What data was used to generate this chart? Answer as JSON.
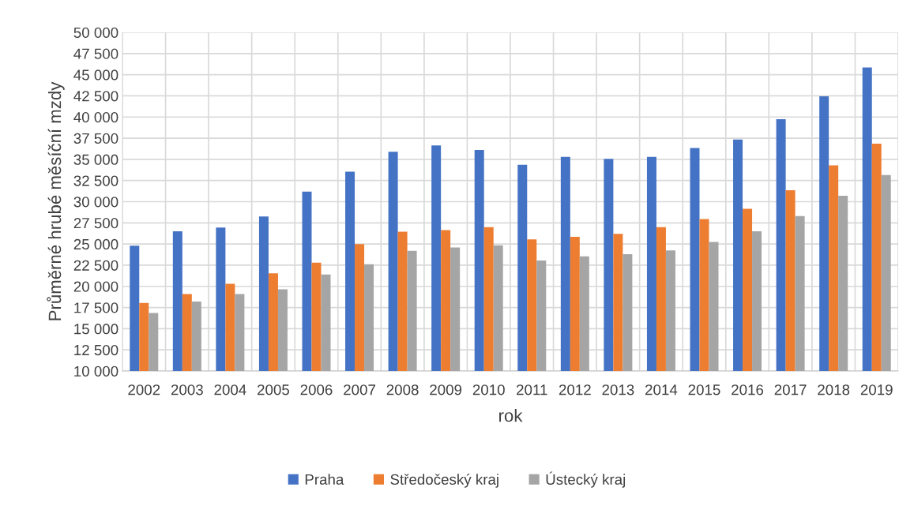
{
  "chart_data": {
    "type": "bar",
    "xlabel": "rok",
    "ylabel": "Průměrné hrubé měsíční mzdy",
    "categories": [
      "2002",
      "2003",
      "2004",
      "2005",
      "2006",
      "2007",
      "2008",
      "2009",
      "2010",
      "2011",
      "2012",
      "2013",
      "2014",
      "2015",
      "2016",
      "2017",
      "2018",
      "2019"
    ],
    "series": [
      {
        "name": "Praha",
        "color": "#4472c4",
        "values": [
          24800,
          26500,
          26950,
          28250,
          31200,
          33550,
          35900,
          36650,
          36100,
          34350,
          35300,
          35050,
          35300,
          36350,
          37350,
          39750,
          42450,
          45850
        ]
      },
      {
        "name": "Středočeský kraj",
        "color": "#ed7d31",
        "values": [
          18050,
          19100,
          20300,
          21550,
          22800,
          25000,
          26450,
          26650,
          27000,
          25550,
          25850,
          26200,
          27000,
          27950,
          29150,
          31350,
          34300,
          36850
        ]
      },
      {
        "name": "Ústecký kraj",
        "color": "#a5a5a5",
        "values": [
          16850,
          18200,
          19100,
          19650,
          21400,
          22600,
          24200,
          24600,
          24850,
          23050,
          23550,
          23800,
          24250,
          25250,
          26500,
          28300,
          30700,
          33150
        ]
      }
    ],
    "ylim": [
      10000,
      50000
    ],
    "yticks": [
      {
        "value": 10000,
        "label": "10 000"
      },
      {
        "value": 12500,
        "label": "12 500"
      },
      {
        "value": 15000,
        "label": "15 000"
      },
      {
        "value": 17500,
        "label": "17 500"
      },
      {
        "value": 20000,
        "label": "20 000"
      },
      {
        "value": 22500,
        "label": "22 500"
      },
      {
        "value": 25000,
        "label": "25 000"
      },
      {
        "value": 27500,
        "label": "27 500"
      },
      {
        "value": 30000,
        "label": "30 000"
      },
      {
        "value": 32500,
        "label": "32 500"
      },
      {
        "value": 35000,
        "label": "35 000"
      },
      {
        "value": 37500,
        "label": "37 500"
      },
      {
        "value": 40000,
        "label": "40 000"
      },
      {
        "value": 42500,
        "label": "42 500"
      },
      {
        "value": 45000,
        "label": "45 000"
      },
      {
        "value": 47500,
        "label": "47 500"
      },
      {
        "value": 50000,
        "label": "50 000"
      }
    ],
    "grid": true,
    "legend": "bottom"
  }
}
